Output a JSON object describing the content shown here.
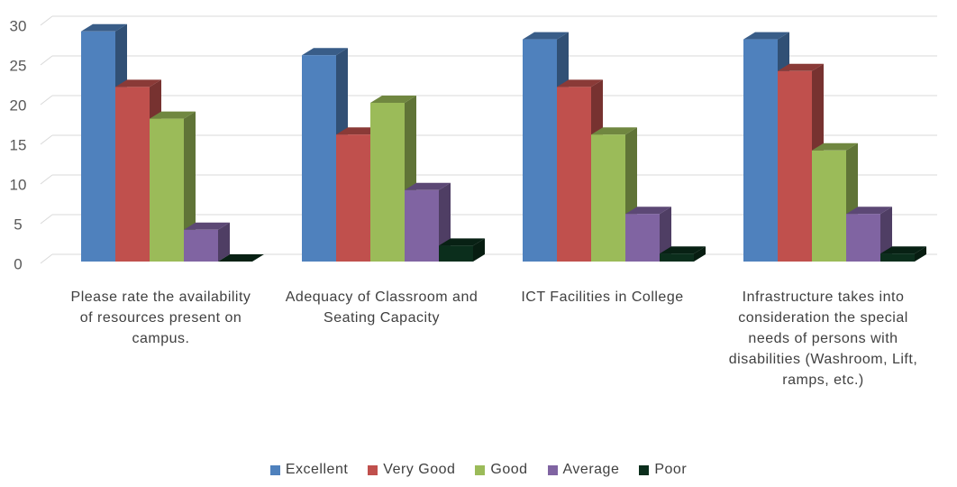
{
  "chart_data": {
    "type": "bar3d",
    "categories": [
      "Please rate the availability of resources present on campus.",
      "Adequacy of Classroom and Seating Capacity",
      "ICT Facilities in College",
      "Infrastructure takes into consideration the special needs of persons with disabilities (Washroom, Lift, ramps, etc.)"
    ],
    "series": [
      {
        "name": "Excellent",
        "color": "#4f81bd",
        "values": [
          29,
          26,
          28,
          28
        ]
      },
      {
        "name": "Very Good",
        "color": "#c0504d",
        "values": [
          22,
          16,
          22,
          24
        ]
      },
      {
        "name": "Good",
        "color": "#9bbb59",
        "values": [
          18,
          20,
          16,
          14
        ]
      },
      {
        "name": "Average",
        "color": "#8064a2",
        "values": [
          4,
          9,
          6,
          6
        ]
      },
      {
        "name": "Poor",
        "color": "#0b2e1c",
        "values": [
          0,
          2,
          1,
          1
        ]
      }
    ],
    "ylim": [
      0,
      30
    ],
    "yticks": [
      0,
      5,
      10,
      15,
      20,
      25,
      30
    ],
    "grid": true,
    "legend": "bottom"
  }
}
